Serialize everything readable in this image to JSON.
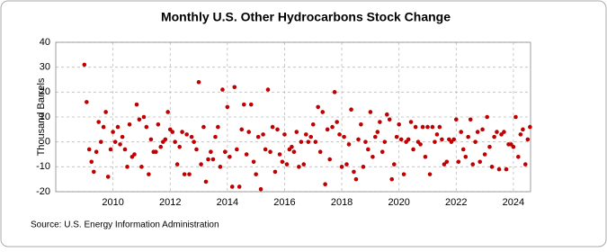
{
  "chart_data": {
    "type": "scatter",
    "title": "Monthly U.S. Other Hydrocarbons Stock Change",
    "y_label": "Thousand Barrels",
    "source": "Source: U.S. Energy Information Administration",
    "color": "#c00000",
    "grid": true,
    "xlim": [
      2008,
      2024.6
    ],
    "xticks": [
      2010,
      2012,
      2014,
      2016,
      2018,
      2020,
      2022,
      2024
    ],
    "ylim": [
      -20,
      40
    ],
    "yticks": [
      -20,
      -10,
      0,
      10,
      20,
      30,
      40
    ],
    "x": [
      2009.0,
      2009.08,
      2009.17,
      2009.25,
      2009.33,
      2009.42,
      2009.5,
      2009.58,
      2009.67,
      2009.75,
      2009.83,
      2009.92,
      2010.0,
      2010.08,
      2010.17,
      2010.25,
      2010.33,
      2010.42,
      2010.5,
      2010.58,
      2010.67,
      2010.75,
      2010.83,
      2010.92,
      2011.0,
      2011.08,
      2011.17,
      2011.25,
      2011.33,
      2011.42,
      2011.5,
      2011.58,
      2011.67,
      2011.75,
      2011.83,
      2011.92,
      2012.0,
      2012.08,
      2012.17,
      2012.25,
      2012.33,
      2012.42,
      2012.5,
      2012.58,
      2012.67,
      2012.75,
      2012.83,
      2012.92,
      2013.0,
      2013.08,
      2013.17,
      2013.25,
      2013.33,
      2013.42,
      2013.5,
      2013.58,
      2013.67,
      2013.75,
      2013.83,
      2013.92,
      2014.0,
      2014.08,
      2014.17,
      2014.25,
      2014.33,
      2014.42,
      2014.5,
      2014.58,
      2014.67,
      2014.75,
      2014.83,
      2014.92,
      2015.0,
      2015.08,
      2015.17,
      2015.25,
      2015.33,
      2015.42,
      2015.5,
      2015.58,
      2015.67,
      2015.75,
      2015.83,
      2015.92,
      2016.0,
      2016.08,
      2016.17,
      2016.25,
      2016.33,
      2016.42,
      2016.5,
      2016.58,
      2016.67,
      2016.75,
      2016.83,
      2016.92,
      2017.0,
      2017.08,
      2017.17,
      2017.25,
      2017.33,
      2017.42,
      2017.5,
      2017.58,
      2017.67,
      2017.75,
      2017.83,
      2017.92,
      2018.0,
      2018.08,
      2018.17,
      2018.25,
      2018.33,
      2018.42,
      2018.5,
      2018.58,
      2018.67,
      2018.75,
      2018.83,
      2018.92,
      2019.0,
      2019.08,
      2019.17,
      2019.25,
      2019.33,
      2019.42,
      2019.5,
      2019.58,
      2019.67,
      2019.75,
      2019.83,
      2019.92,
      2020.0,
      2020.08,
      2020.17,
      2020.25,
      2020.33,
      2020.42,
      2020.5,
      2020.58,
      2020.67,
      2020.75,
      2020.83,
      2020.92,
      2021.0,
      2021.08,
      2021.17,
      2021.25,
      2021.33,
      2021.42,
      2021.5,
      2021.58,
      2021.67,
      2021.75,
      2021.83,
      2021.92,
      2022.0,
      2022.08,
      2022.17,
      2022.25,
      2022.33,
      2022.42,
      2022.5,
      2022.58,
      2022.67,
      2022.75,
      2022.83,
      2022.92,
      2023.0,
      2023.08,
      2023.17,
      2023.25,
      2023.33,
      2023.42,
      2023.5,
      2023.58,
      2023.67,
      2023.75,
      2023.83,
      2023.92,
      2024.0,
      2024.08,
      2024.17,
      2024.25,
      2024.33,
      2024.42,
      2024.5,
      2024.58
    ],
    "values": [
      31,
      16,
      -3,
      -8,
      -12,
      -4,
      8,
      0,
      6,
      12,
      -14,
      -3,
      4,
      0,
      6,
      -1,
      2,
      -3,
      -10,
      7,
      -6,
      -5,
      15,
      9,
      -10,
      10,
      6,
      -13,
      1,
      -4,
      -4,
      7,
      -2,
      0,
      1,
      12,
      5,
      4,
      0,
      -9,
      -2,
      4,
      -13,
      3,
      -13,
      2,
      0,
      -3,
      24,
      -9,
      6,
      -16,
      -7,
      -4,
      -7,
      2,
      6,
      -10,
      21,
      -4,
      14,
      -6,
      -18,
      22,
      -3,
      -18,
      5,
      15,
      -5,
      4,
      15,
      -8,
      -13,
      2,
      -19,
      3,
      -3,
      21,
      -4,
      6,
      -12,
      5,
      -5,
      -8,
      3,
      -9,
      -3,
      -2,
      -4,
      4,
      -10,
      0,
      -9,
      3,
      0,
      2,
      7,
      0,
      14,
      -4,
      12,
      -17,
      5,
      -7,
      6,
      20,
      8,
      3,
      -10,
      2,
      -9,
      -1,
      13,
      -12,
      -15,
      1,
      7,
      -10,
      0,
      -3,
      12,
      -6,
      2,
      4,
      8,
      -4,
      0,
      11,
      9,
      -15,
      -9,
      2,
      7,
      1,
      -13,
      0,
      1,
      8,
      -3,
      6,
      0,
      -1,
      6,
      -6,
      6,
      -13,
      6,
      0,
      3,
      6,
      1,
      -9,
      -8,
      1,
      0,
      1,
      9,
      -8,
      4,
      -3,
      -6,
      2,
      9,
      -9,
      0,
      4,
      -8,
      5,
      -5,
      10,
      -2,
      -10,
      2,
      4,
      -11,
      3,
      4,
      -11,
      -1,
      -1,
      -2,
      10,
      -6,
      3,
      5,
      -9,
      1,
      6
    ]
  }
}
